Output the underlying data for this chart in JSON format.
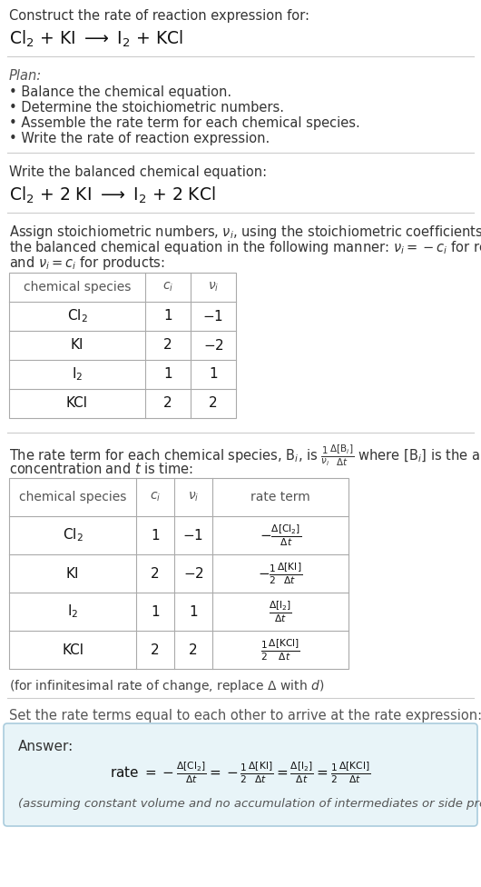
{
  "bg_color": "#ffffff",
  "title_line1": "Construct the rate of reaction expression for:",
  "title_eq": "Cl$_2$ + KI $\\longrightarrow$ I$_2$ + KCl",
  "plan_header": "Plan:",
  "plan_items": [
    "• Balance the chemical equation.",
    "• Determine the stoichiometric numbers.",
    "• Assemble the rate term for each chemical species.",
    "• Write the rate of reaction expression."
  ],
  "balanced_header": "Write the balanced chemical equation:",
  "balanced_eq": "Cl$_2$ + 2 KI $\\longrightarrow$ I$_2$ + 2 KCl",
  "stoich_intro_1": "Assign stoichiometric numbers, $\\nu_i$, using the stoichiometric coefficients, $c_i$, from",
  "stoich_intro_2": "the balanced chemical equation in the following manner: $\\nu_i = -c_i$ for reactants",
  "stoich_intro_3": "and $\\nu_i = c_i$ for products:",
  "table1_headers": [
    "chemical species",
    "$c_i$",
    "$\\nu_i$"
  ],
  "table1_rows": [
    [
      "Cl$_2$",
      "1",
      "$-1$"
    ],
    [
      "KI",
      "2",
      "$-2$"
    ],
    [
      "I$_2$",
      "1",
      "1"
    ],
    [
      "KCl",
      "2",
      "2"
    ]
  ],
  "rate_intro_1": "The rate term for each chemical species, B$_i$, is $\\frac{1}{\\nu_i}\\frac{\\Delta[\\mathrm{B}_i]}{\\Delta t}$ where [B$_i$] is the amount",
  "rate_intro_2": "concentration and $t$ is time:",
  "table2_headers": [
    "chemical species",
    "$c_i$",
    "$\\nu_i$",
    "rate term"
  ],
  "table2_rows": [
    [
      "Cl$_2$",
      "1",
      "$-1$",
      "$-\\frac{\\Delta[\\mathrm{Cl_2}]}{\\Delta t}$"
    ],
    [
      "KI",
      "2",
      "$-2$",
      "$-\\frac{1}{2}\\frac{\\Delta[\\mathrm{KI}]}{\\Delta t}$"
    ],
    [
      "I$_2$",
      "1",
      "1",
      "$\\frac{\\Delta[\\mathrm{I_2}]}{\\Delta t}$"
    ],
    [
      "KCl",
      "2",
      "2",
      "$\\frac{1}{2}\\frac{\\Delta[\\mathrm{KCl}]}{\\Delta t}$"
    ]
  ],
  "infinitesimal_note": "(for infinitesimal rate of change, replace Δ with $d$)",
  "set_rate_text": "Set the rate terms equal to each other to arrive at the rate expression:",
  "answer_label": "Answer:",
  "answer_box_color": "#e8f4f8",
  "answer_box_border": "#aaccdd",
  "answer_eq": "rate $= -\\frac{\\Delta[\\mathrm{Cl_2}]}{\\Delta t} = -\\frac{1}{2}\\frac{\\Delta[\\mathrm{KI}]}{\\Delta t} = \\frac{\\Delta[\\mathrm{I_2}]}{\\Delta t} = \\frac{1}{2}\\frac{\\Delta[\\mathrm{KCl}]}{\\Delta t}$",
  "answer_note": "(assuming constant volume and no accumulation of intermediates or side products)"
}
